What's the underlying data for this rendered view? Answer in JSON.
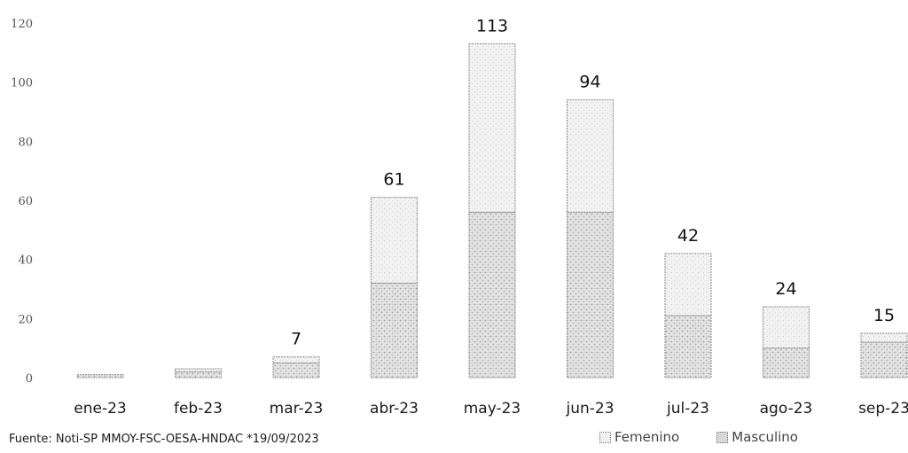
{
  "chart_data": {
    "type": "bar",
    "stacked": true,
    "categories": [
      "ene-23",
      "feb-23",
      "mar-23",
      "abr-23",
      "may-23",
      "jun-23",
      "jul-23",
      "ago-23",
      "sep-23"
    ],
    "series": [
      {
        "name": "Femenino",
        "values": [
          0,
          1,
          2,
          29,
          57,
          38,
          21,
          14,
          3
        ]
      },
      {
        "name": "Masculino",
        "values": [
          1,
          2,
          5,
          32,
          56,
          56,
          21,
          10,
          12
        ]
      }
    ],
    "totals": [
      1,
      3,
      7,
      61,
      113,
      94,
      42,
      24,
      15
    ],
    "data_labels": [
      "",
      "",
      "7",
      "61",
      "113",
      "94",
      "42",
      "24",
      "15"
    ],
    "y_ticks": [
      "0",
      "20",
      "40",
      "60",
      "80",
      "100",
      "120"
    ],
    "ylim": [
      0,
      120
    ],
    "grid": false,
    "legend_position": "bottom-right",
    "title": "",
    "xlabel": "",
    "ylabel": ""
  },
  "legend": {
    "femenino": "Femenino",
    "masculino": "Masculino"
  },
  "source": "Fuente: Noti-SP MMOY-FSC-OESA-HNDAC *19/09/2023",
  "colors": {
    "femenino_fill": "#f0f0f0",
    "masculino_fill": "#d8d8d8",
    "bar_edge": "#8a8a8a"
  }
}
